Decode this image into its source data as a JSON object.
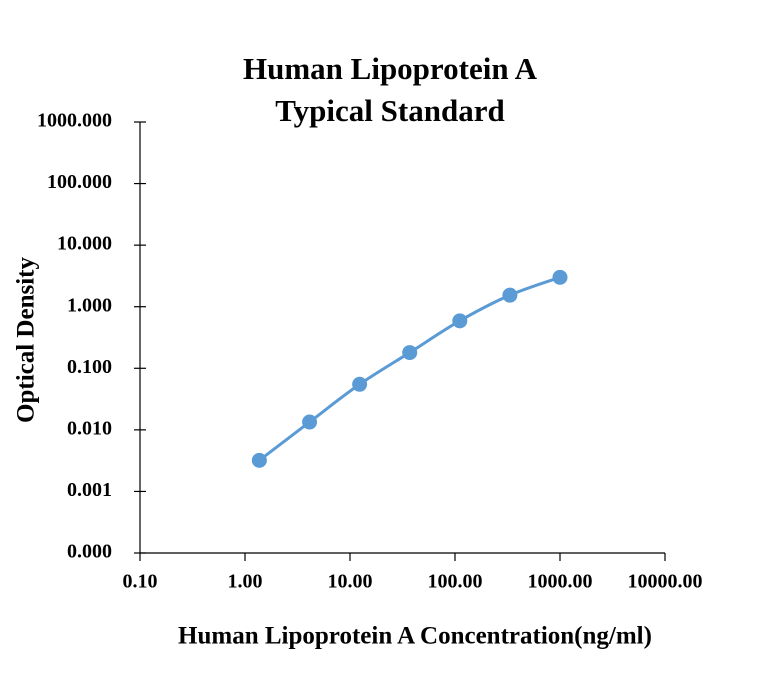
{
  "chart_data": {
    "type": "line",
    "title": [
      "Human Lipoprotein A",
      "Typical Standard"
    ],
    "x_label": "Human Lipoprotein A Concentration(ng/ml)",
    "y_label": "Optical Density",
    "x": [
      1.37,
      4.12,
      12.35,
      37.04,
      111.1,
      333.3,
      1000
    ],
    "series": [
      {
        "name": "Optical Density",
        "color": "#5b9bd5",
        "values": [
          0.0032,
          0.0134,
          0.055,
          0.18,
          0.59,
          1.54,
          3.0
        ]
      }
    ],
    "xscale": "log",
    "yscale": "log",
    "xlim": [
      0.1,
      10000
    ],
    "ylim": [
      0.0001,
      1000
    ],
    "xticks": [
      {
        "value": 0.1,
        "label": "0.10"
      },
      {
        "value": 1,
        "label": "1.00"
      },
      {
        "value": 10,
        "label": "10.00"
      },
      {
        "value": 100,
        "label": "100.00"
      },
      {
        "value": 1000,
        "label": "1000.00"
      },
      {
        "value": 10000,
        "label": "10000.00"
      }
    ],
    "yticks": [
      {
        "value": 0.0001,
        "label": "0.000"
      },
      {
        "value": 0.001,
        "label": "0.001"
      },
      {
        "value": 0.01,
        "label": "0.010"
      },
      {
        "value": 0.1,
        "label": "0.100"
      },
      {
        "value": 1,
        "label": "1.000"
      },
      {
        "value": 10,
        "label": "10.000"
      },
      {
        "value": 100,
        "label": "100.000"
      },
      {
        "value": 1000,
        "label": "1000.000"
      }
    ],
    "grid": false
  }
}
